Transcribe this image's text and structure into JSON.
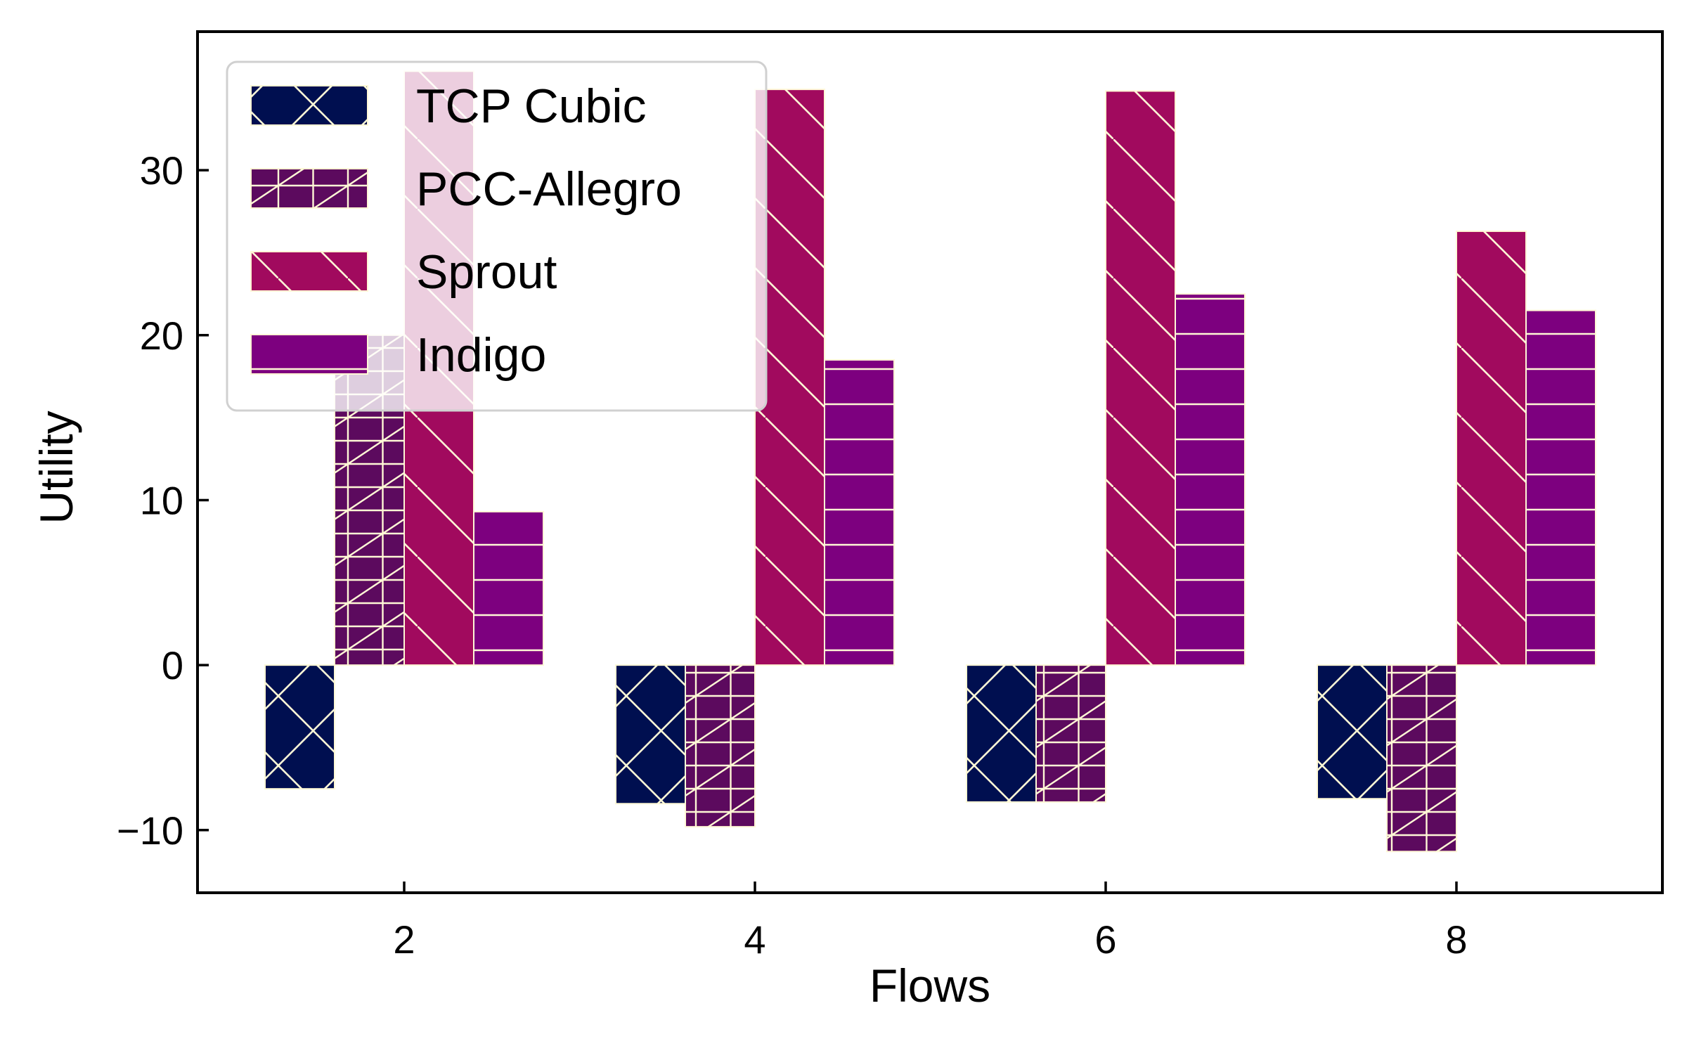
{
  "chart_data": {
    "type": "bar",
    "xlabel": "Flows",
    "ylabel": "Utility",
    "categories": [
      "2",
      "4",
      "6",
      "8"
    ],
    "ylim": [
      -13.8,
      38.4
    ],
    "yticks": [
      -10,
      0,
      10,
      20,
      30
    ],
    "ytick_labels": [
      "−10",
      "0",
      "10",
      "20",
      "30"
    ],
    "grid": false,
    "legend_position": "top-left",
    "hatch_color": "#FFF8D6",
    "series": [
      {
        "name": "TCP Cubic",
        "color": "#000F50",
        "hatch": "cross-diagonal",
        "values": [
          -7.5,
          -8.4,
          -8.3,
          -8.1
        ]
      },
      {
        "name": "PCC-Allegro",
        "color": "#5C0A5E",
        "hatch": "grid-diagonal",
        "values": [
          20.0,
          -9.8,
          -8.3,
          -11.3
        ]
      },
      {
        "name": "Sprout",
        "color": "#A10A5E",
        "hatch": "backslash",
        "values": [
          36.0,
          34.9,
          34.8,
          26.3
        ]
      },
      {
        "name": "Indigo",
        "color": "#7D007F",
        "hatch": "horizontal",
        "values": [
          9.3,
          18.5,
          22.5,
          21.5
        ]
      }
    ]
  }
}
